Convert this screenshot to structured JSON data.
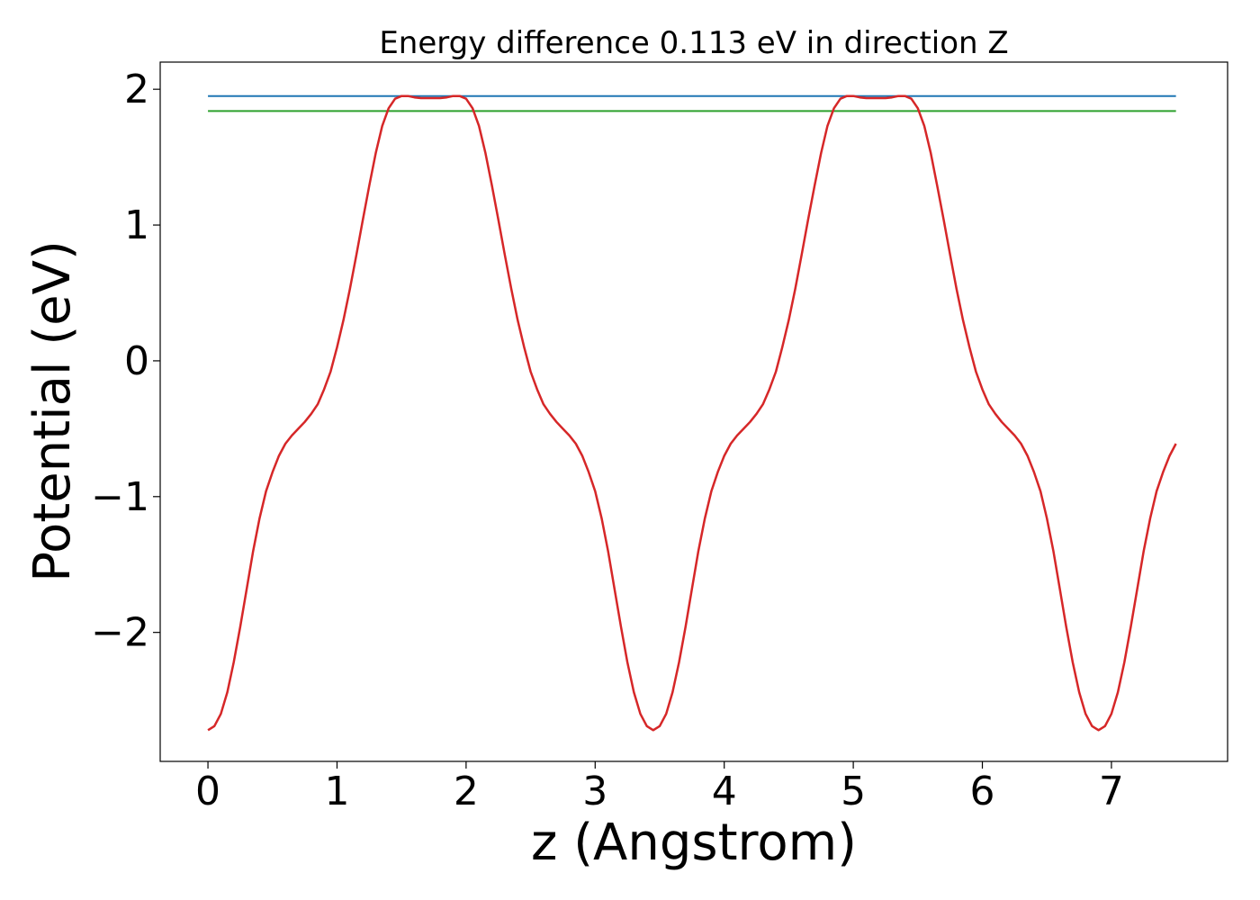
{
  "chart_data": {
    "type": "line",
    "title": "Energy difference 0.113 eV in direction Z",
    "xlabel": "z (Angstrom)",
    "ylabel": "Potential (eV)",
    "xlim": [
      -0.37,
      7.9
    ],
    "ylim": [
      -2.95,
      2.2
    ],
    "grid": false,
    "x_ticks": [
      0,
      1,
      2,
      3,
      4,
      5,
      6,
      7
    ],
    "x_tick_labels": [
      "0",
      "1",
      "2",
      "3",
      "4",
      "5",
      "6",
      "7"
    ],
    "y_ticks": [
      -2,
      -1,
      0,
      1,
      2
    ],
    "y_tick_labels": [
      "−2",
      "−1",
      "0",
      "1",
      "2"
    ],
    "series": [
      {
        "color": "#d62728",
        "x": [
          0.0,
          0.05,
          0.1,
          0.15,
          0.2,
          0.25,
          0.3,
          0.35,
          0.4,
          0.45,
          0.5,
          0.55,
          0.6,
          0.65,
          0.7,
          0.75,
          0.8,
          0.85,
          0.9,
          0.95,
          1.0,
          1.05,
          1.1,
          1.15,
          1.2,
          1.25,
          1.3,
          1.35,
          1.4,
          1.45,
          1.5,
          1.55,
          1.6,
          1.65,
          1.7,
          1.75,
          1.8,
          1.85,
          1.9,
          1.95,
          2.0,
          2.05,
          2.1,
          2.15,
          2.2,
          2.25,
          2.3,
          2.35,
          2.4,
          2.45,
          2.5,
          2.55,
          2.6,
          2.65,
          2.7,
          2.75,
          2.8,
          2.85,
          2.9,
          2.95,
          3.0,
          3.05,
          3.1,
          3.15,
          3.2,
          3.25,
          3.3,
          3.35,
          3.4,
          3.45,
          3.5,
          3.55,
          3.6,
          3.65,
          3.7,
          3.75,
          3.8,
          3.85,
          3.9,
          3.95,
          4.0,
          4.05,
          4.1,
          4.15,
          4.2,
          4.25,
          4.3,
          4.35,
          4.4,
          4.45,
          4.5,
          4.55,
          4.6,
          4.65,
          4.7,
          4.75,
          4.8,
          4.85,
          4.9,
          4.95,
          5.0,
          5.05,
          5.1,
          5.15,
          5.2,
          5.25,
          5.3,
          5.35,
          5.4,
          5.45,
          5.5,
          5.55,
          5.6,
          5.65,
          5.7,
          5.75,
          5.8,
          5.85,
          5.9,
          5.95,
          6.0,
          6.05,
          6.1,
          6.15,
          6.2,
          6.25,
          6.3,
          6.35,
          6.4,
          6.45,
          6.5,
          6.55,
          6.6,
          6.65,
          6.7,
          6.75,
          6.8,
          6.85,
          6.9,
          6.95,
          7.0,
          7.05,
          7.1,
          7.15,
          7.2,
          7.25,
          7.3,
          7.35,
          7.4,
          7.45,
          7.5
        ],
        "y": [
          -2.72,
          -2.69,
          -2.6,
          -2.44,
          -2.22,
          -1.96,
          -1.68,
          -1.4,
          -1.16,
          -0.96,
          -0.82,
          -0.7,
          -0.61,
          -0.55,
          -0.5,
          -0.45,
          -0.39,
          -0.32,
          -0.21,
          -0.08,
          0.1,
          0.3,
          0.53,
          0.78,
          1.04,
          1.29,
          1.53,
          1.73,
          1.86,
          1.93,
          1.95,
          1.95,
          1.94,
          1.935,
          1.935,
          1.935,
          1.935,
          1.94,
          1.95,
          1.95,
          1.93,
          1.86,
          1.73,
          1.53,
          1.29,
          1.04,
          0.78,
          0.53,
          0.3,
          0.1,
          -0.08,
          -0.21,
          -0.32,
          -0.39,
          -0.45,
          -0.5,
          -0.55,
          -0.61,
          -0.7,
          -0.82,
          -0.96,
          -1.16,
          -1.4,
          -1.68,
          -1.96,
          -2.22,
          -2.44,
          -2.6,
          -2.69,
          -2.72,
          -2.69,
          -2.6,
          -2.44,
          -2.22,
          -1.96,
          -1.68,
          -1.4,
          -1.16,
          -0.96,
          -0.82,
          -0.7,
          -0.61,
          -0.55,
          -0.5,
          -0.45,
          -0.39,
          -0.32,
          -0.21,
          -0.08,
          0.1,
          0.3,
          0.53,
          0.78,
          1.04,
          1.29,
          1.53,
          1.73,
          1.86,
          1.93,
          1.95,
          1.95,
          1.94,
          1.935,
          1.935,
          1.935,
          1.935,
          1.94,
          1.95,
          1.95,
          1.93,
          1.86,
          1.73,
          1.53,
          1.29,
          1.04,
          0.78,
          0.53,
          0.3,
          0.1,
          -0.08,
          -0.21,
          -0.32,
          -0.39,
          -0.45,
          -0.5,
          -0.55,
          -0.61,
          -0.7,
          -0.82,
          -0.96,
          -1.16,
          -1.4,
          -1.68,
          -1.96,
          -2.22,
          -2.44,
          -2.6,
          -2.69,
          -2.72,
          -2.69,
          -2.6,
          -2.44,
          -2.22,
          -1.96,
          -1.68,
          -1.4,
          -1.16,
          -0.96,
          -0.82,
          -0.7,
          -0.61
        ]
      }
    ],
    "hlines": [
      {
        "y": 1.95,
        "x_range": [
          0,
          7.5
        ],
        "color": "#1f77b4"
      },
      {
        "y": 1.84,
        "x_range": [
          0,
          7.5
        ],
        "color": "#2ca02c"
      }
    ]
  }
}
